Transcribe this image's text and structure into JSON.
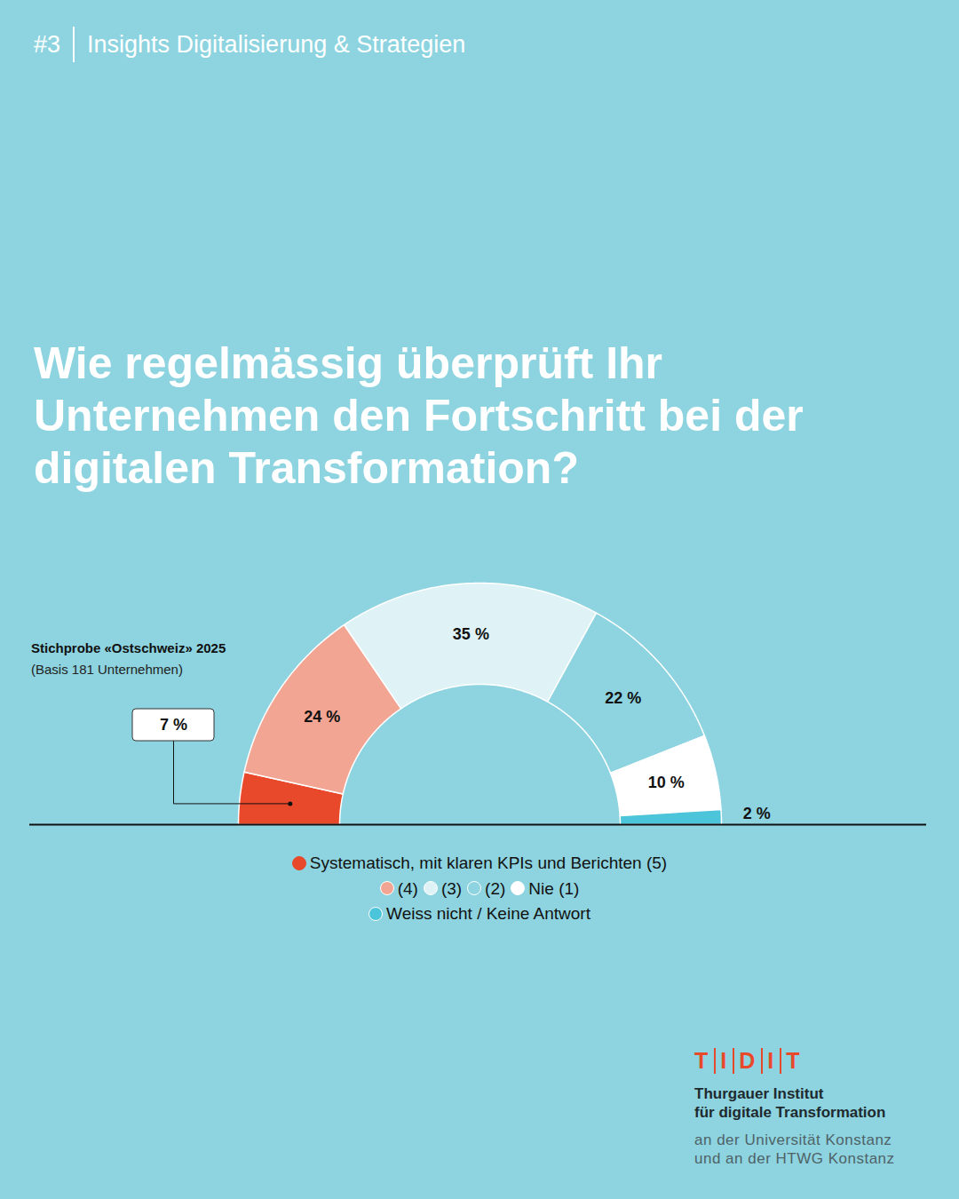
{
  "header": {
    "number": "#3",
    "text": "Insights Digitalisierung & Strategien"
  },
  "chart_data": {
    "type": "donut",
    "title": "Wie regelmässig überprüft Ihr Unternehmen den Fortschritt bei der digitalen Transformation?",
    "subtitle": "Stichprobe «Ostschweiz» 2025",
    "annotations": [
      "(Basis 181 Unternehmen)"
    ],
    "categories": [
      "Systematisch, mit klaren KPIs und Berichten (5)",
      "(4)",
      "(3)",
      "(2)",
      "Nie (1)",
      "Weiss nicht / Keine Antwort"
    ],
    "values": [
      7,
      24,
      35,
      22,
      10,
      2
    ],
    "value_labels": [
      "7 %",
      "24 %",
      "35 %",
      "22 %",
      "10 %",
      "2 %"
    ],
    "colors": [
      "#e8492a",
      "#f3a593",
      "#dff3f7",
      "#8dd4e0",
      "#ffffff",
      "#4cc4da"
    ],
    "data_labels": true,
    "legend": "bottom"
  },
  "footer": {
    "logo": "TIDIT",
    "name_lines": [
      "Thurgauer Institut",
      "für digitale Transformation"
    ],
    "affiliation_lines": [
      "an der Universität Konstanz",
      "und an der HTWG Konstanz"
    ]
  }
}
